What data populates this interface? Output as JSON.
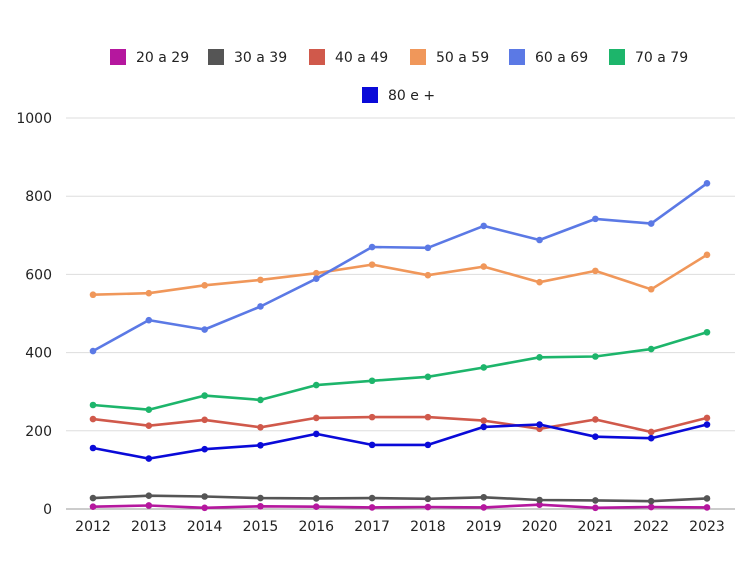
{
  "chart_data": {
    "type": "line",
    "x": [
      "2012",
      "2013",
      "2014",
      "2015",
      "2016",
      "2017",
      "2018",
      "2019",
      "2020",
      "2021",
      "2022",
      "2023"
    ],
    "ylim": [
      0,
      1000
    ],
    "yticks": [
      "0",
      "200",
      "400",
      "600",
      "800",
      "1000"
    ],
    "grid": true,
    "legend_position": "top",
    "series": [
      {
        "name": "20 a 29",
        "color": "#b5179e",
        "values": [
          6,
          9,
          3,
          7,
          6,
          4,
          5,
          4,
          11,
          3,
          5,
          4
        ]
      },
      {
        "name": "30 a 39",
        "color": "#555555",
        "values": [
          28,
          34,
          32,
          28,
          27,
          28,
          26,
          30,
          23,
          22,
          20,
          27
        ]
      },
      {
        "name": "40 a 49",
        "color": "#d0594b",
        "values": [
          230,
          213,
          228,
          209,
          233,
          235,
          235,
          226,
          205,
          229,
          197,
          233
        ]
      },
      {
        "name": "50 a 59",
        "color": "#f0975a",
        "values": [
          548,
          552,
          572,
          586,
          603,
          625,
          598,
          620,
          580,
          609,
          562,
          650
        ]
      },
      {
        "name": "60 a 69",
        "color": "#5b79e5",
        "values": [
          404,
          483,
          459,
          518,
          589,
          670,
          668,
          724,
          688,
          742,
          730,
          833
        ]
      },
      {
        "name": "70 a 79",
        "color": "#1db56b",
        "values": [
          266,
          254,
          290,
          279,
          317,
          328,
          338,
          362,
          388,
          390,
          409,
          452
        ]
      },
      {
        "name": "80 e +",
        "color": "#0a0ad8",
        "values": [
          156,
          129,
          153,
          163,
          192,
          164,
          164,
          210,
          216,
          185,
          181,
          216
        ]
      }
    ]
  }
}
